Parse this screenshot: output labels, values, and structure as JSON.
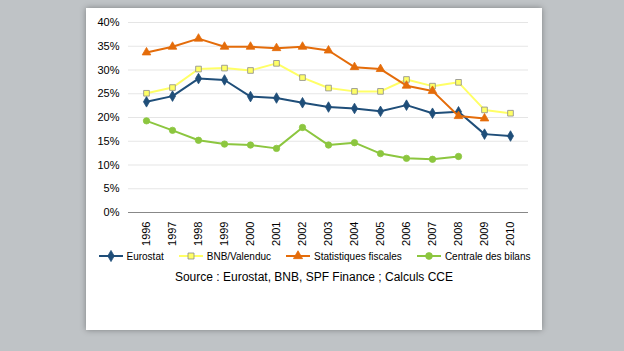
{
  "chart_data": {
    "type": "line",
    "caption": "Source : Eurostat, BNB, SPF Finance ; Calculs CCE",
    "categories": [
      "1996",
      "1997",
      "1998",
      "1999",
      "2000",
      "2001",
      "2002",
      "2003",
      "2004",
      "2005",
      "2006",
      "2007",
      "2008",
      "2009",
      "2010"
    ],
    "series": [
      {
        "name": "Eurostat",
        "color": "#1f4e79",
        "marker": "diamond",
        "values": [
          23.3,
          24.5,
          28.2,
          27.9,
          24.4,
          24.1,
          23.1,
          22.2,
          21.9,
          21.3,
          22.6,
          20.9,
          21.2,
          16.5,
          16.1
        ]
      },
      {
        "name": "BNB/Valenduc",
        "color": "#ffff66",
        "marker": "square",
        "values": [
          25.1,
          26.3,
          30.2,
          30.4,
          29.9,
          31.4,
          28.4,
          26.2,
          25.5,
          25.5,
          28.0,
          26.6,
          27.4,
          21.6,
          20.9
        ]
      },
      {
        "name": "Statistiques fiscales",
        "color": "#e46c0a",
        "marker": "triangle",
        "values": [
          33.7,
          34.9,
          36.6,
          34.9,
          34.9,
          34.6,
          34.9,
          34.1,
          30.6,
          30.2,
          26.7,
          25.6,
          20.3,
          19.8,
          null
        ]
      },
      {
        "name": "Centrale des bilans",
        "color": "#8cc63f",
        "marker": "circle",
        "values": [
          19.3,
          17.3,
          15.2,
          14.4,
          14.2,
          13.5,
          17.9,
          14.2,
          14.7,
          12.4,
          11.4,
          11.2,
          11.8,
          null,
          null
        ]
      }
    ],
    "ylim": [
      0,
      40
    ],
    "yticks": [
      {
        "value": 0,
        "label": "0%"
      },
      {
        "value": 5,
        "label": "5%"
      },
      {
        "value": 10,
        "label": "10%"
      },
      {
        "value": 15,
        "label": "15%"
      },
      {
        "value": 20,
        "label": "20%"
      },
      {
        "value": 25,
        "label": "25%"
      },
      {
        "value": 30,
        "label": "30%"
      },
      {
        "value": 35,
        "label": "35%"
      },
      {
        "value": 40,
        "label": "40%"
      }
    ],
    "grid": true,
    "legend": "bottom"
  }
}
